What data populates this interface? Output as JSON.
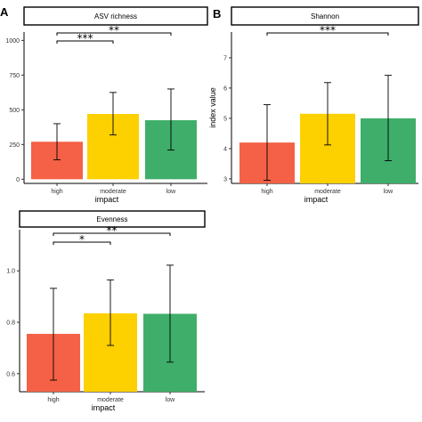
{
  "chart_data": [
    {
      "panel": "A",
      "type": "bar",
      "title": "ASV richness",
      "categories": [
        "high",
        "moderate",
        "low"
      ],
      "values": [
        270,
        470,
        425
      ],
      "error_low": [
        140,
        320,
        210
      ],
      "error_high": [
        400,
        625,
        650
      ],
      "colors": [
        "#f46146",
        "#fdd000",
        "#3fae6a"
      ],
      "xlabel": "impact",
      "ylabel": "",
      "ylim": [
        -30,
        1060
      ],
      "yticks": [
        0,
        250,
        500,
        750,
        1000
      ],
      "significance": [
        {
          "from": 0,
          "to": 1,
          "label": "***"
        },
        {
          "from": 0,
          "to": 2,
          "label": "**"
        }
      ]
    },
    {
      "panel": "B",
      "type": "bar",
      "title": "Shannon",
      "categories": [
        "high",
        "moderate",
        "low"
      ],
      "values": [
        4.2,
        5.15,
        5.0
      ],
      "error_low": [
        2.95,
        4.12,
        3.6
      ],
      "error_high": [
        5.45,
        6.18,
        6.42
      ],
      "colors": [
        "#f46146",
        "#fdd000",
        "#3fae6a"
      ],
      "xlabel": "impact",
      "ylabel": "index value",
      "ylim": [
        2.85,
        7.85
      ],
      "yticks": [
        3,
        4,
        5,
        6,
        7
      ],
      "significance": [
        {
          "from": 0,
          "to": 2,
          "label": "***"
        }
      ]
    },
    {
      "panel": "",
      "type": "bar",
      "title": "Evenness",
      "categories": [
        "high",
        "moderate",
        "low"
      ],
      "values": [
        0.755,
        0.835,
        0.833
      ],
      "error_low": [
        0.575,
        0.71,
        0.645
      ],
      "error_high": [
        0.932,
        0.965,
        1.022
      ],
      "colors": [
        "#f46146",
        "#fdd000",
        "#3fae6a"
      ],
      "xlabel": "impact",
      "ylabel": "",
      "ylim": [
        0.53,
        1.16
      ],
      "yticks": [
        0.6,
        0.8,
        1.0
      ],
      "ytick_labels": [
        "0.6",
        "0.8",
        "1.0"
      ],
      "significance": [
        {
          "from": 0,
          "to": 1,
          "label": "*"
        },
        {
          "from": 0,
          "to": 2,
          "label": "**"
        }
      ]
    }
  ]
}
